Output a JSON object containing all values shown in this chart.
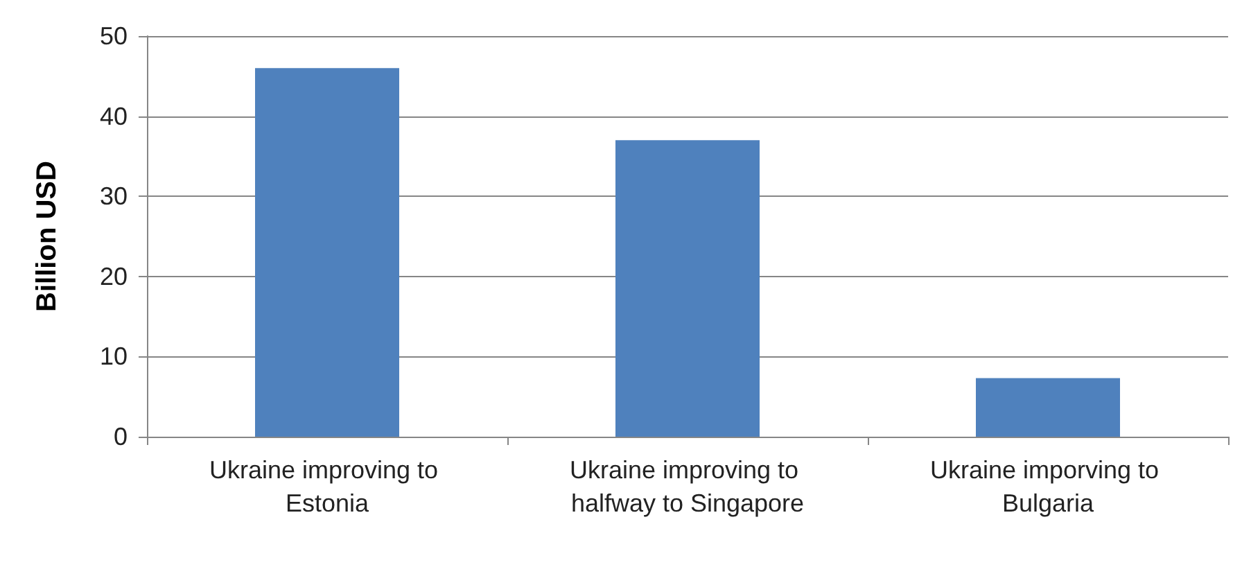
{
  "chart_data": {
    "type": "bar",
    "ylabel": "Billion USD",
    "categories": [
      "Ukraine improving to Estonia",
      "Ukraine improving to halfway to Singapore",
      "Ukraine imporving to Bulgaria"
    ],
    "values": [
      46,
      37,
      7.3
    ],
    "color": "#4f81bd",
    "ylim": [
      0,
      50
    ],
    "yticks": [
      0,
      10,
      20,
      30,
      40,
      50
    ],
    "grid": "y"
  }
}
